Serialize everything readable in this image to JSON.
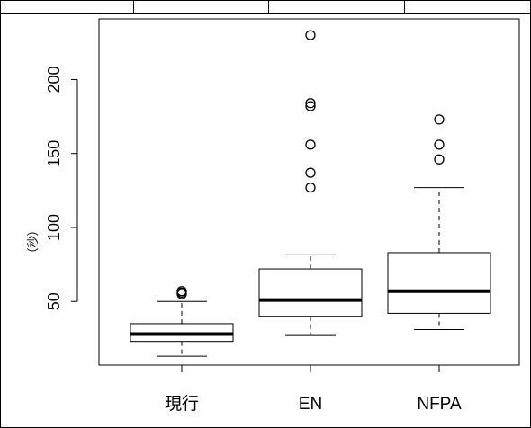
{
  "chart_data": {
    "type": "box",
    "title": "",
    "xlabel": "",
    "ylabel": "（秒）",
    "categories": [
      "現行",
      "EN",
      "NFPA"
    ],
    "boxes": [
      {
        "name": "現行",
        "whisker_low": 13,
        "q1": 23,
        "median": 28,
        "q3": 35,
        "whisker_high": 50,
        "outliers": [
          55,
          56,
          57
        ]
      },
      {
        "name": "EN",
        "whisker_low": 27,
        "q1": 40,
        "median": 51,
        "q3": 72,
        "whisker_high": 82,
        "outliers": [
          127,
          137,
          156,
          182,
          184,
          230
        ]
      },
      {
        "name": "NFPA",
        "whisker_low": 31,
        "q1": 42,
        "median": 57,
        "q3": 83,
        "whisker_high": 127,
        "outliers": [
          146,
          156,
          173
        ]
      }
    ],
    "y_ticks": [
      50,
      100,
      150,
      200
    ],
    "ylim": [
      7,
      241
    ],
    "grid": false
  },
  "top_strip": {
    "cells": 4
  }
}
